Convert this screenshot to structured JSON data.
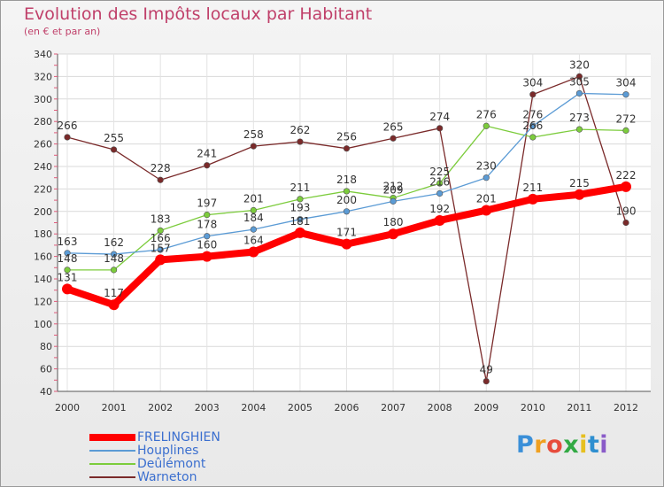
{
  "chart_data": {
    "type": "line",
    "title": "Evolution des Impôts locaux par Habitant",
    "subtitle": "(en € et par an)",
    "xlabel": "",
    "ylabel": "",
    "ylim": [
      40,
      340
    ],
    "yticks": [
      "40",
      "60",
      "80",
      "100",
      "120",
      "140",
      "160",
      "180",
      "200",
      "220",
      "240",
      "260",
      "280",
      "300",
      "320",
      "340"
    ],
    "categories": [
      "2000",
      "2001",
      "2002",
      "2003",
      "2004",
      "2005",
      "2006",
      "2007",
      "2008",
      "2009",
      "2010",
      "2011",
      "2012"
    ],
    "grid": true,
    "series": [
      {
        "name": "FRELINGHIEN",
        "color": "#ff0000",
        "values": [
          131,
          117,
          157,
          160,
          164,
          181,
          171,
          180,
          192,
          201,
          211,
          215,
          222
        ],
        "labels": [
          "131",
          "117",
          "157",
          "160",
          "164",
          "181",
          "171",
          "180",
          "192",
          "201",
          "211",
          "215",
          "222"
        ]
      },
      {
        "name": "Houplines",
        "color": "#5b9bd5",
        "values": [
          163,
          162,
          166,
          178,
          184,
          193,
          200,
          209,
          216,
          230,
          276,
          305,
          304
        ],
        "labels": [
          "163",
          "162",
          "166",
          "178",
          "184",
          "193",
          "200",
          "209",
          "216",
          "230",
          "276",
          "305",
          "304"
        ]
      },
      {
        "name": "Deûlémont",
        "color": "#7ccc3c",
        "values": [
          148,
          148,
          183,
          197,
          201,
          211,
          218,
          212,
          225,
          276,
          266,
          273,
          272
        ],
        "labels": [
          "148",
          "148",
          "183",
          "197",
          "201",
          "211",
          "218",
          "212",
          "225",
          "276",
          "266",
          "273",
          "272"
        ]
      },
      {
        "name": "Warneton",
        "color": "#7a2a2a",
        "values": [
          266,
          255,
          228,
          241,
          258,
          262,
          256,
          265,
          274,
          49,
          304,
          320,
          190
        ],
        "labels": [
          "266",
          "255",
          "228",
          "241",
          "258",
          "262",
          "256",
          "265",
          "274",
          "49",
          "304",
          "320",
          "190"
        ]
      }
    ]
  },
  "brand": {
    "letters": [
      "P",
      "r",
      "o",
      "x",
      "i",
      "t",
      "i"
    ],
    "colors": [
      "#3a8fd8",
      "#f0a020",
      "#e74c3c",
      "#33aa44",
      "#e6c020",
      "#2e8fd0",
      "#8a5bc8"
    ]
  }
}
